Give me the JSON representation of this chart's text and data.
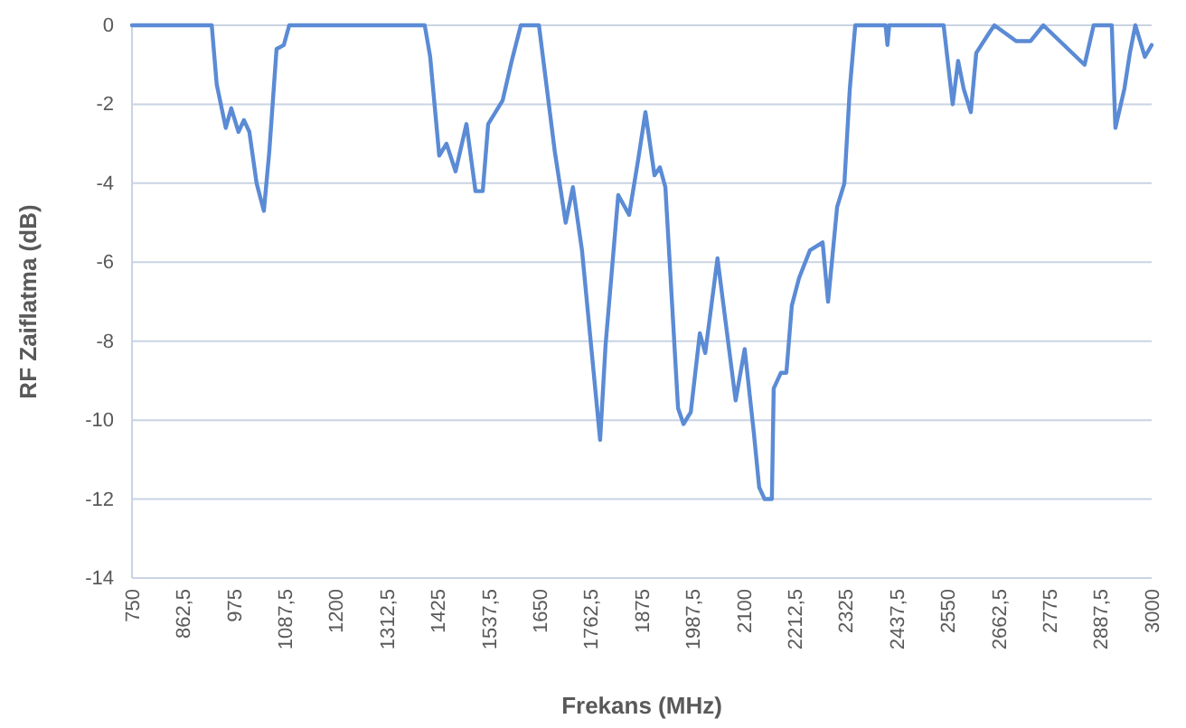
{
  "chart_data": {
    "type": "line",
    "xlabel": "Frekans (MHz)",
    "ylabel": "RF Zaiflatma (dB)",
    "xlim": [
      750,
      3000
    ],
    "ylim": [
      -14,
      0
    ],
    "xticks": [
      750,
      {
        "value": 862.5,
        "label": "862,5"
      },
      975,
      {
        "value": 1087.5,
        "label": "1087,5"
      },
      1200,
      {
        "value": 1312.5,
        "label": "1312,5"
      },
      1425,
      {
        "value": 1537.5,
        "label": "1537,5"
      },
      1650,
      {
        "value": 1762.5,
        "label": "1762,5"
      },
      1875,
      {
        "value": 1987.5,
        "label": "1987,5"
      },
      2100,
      {
        "value": 2212.5,
        "label": "2212,5"
      },
      2325,
      {
        "value": 2437.5,
        "label": "2437,5"
      },
      2550,
      {
        "value": 2662.5,
        "label": "2662,5"
      },
      2775,
      {
        "value": 2887.5,
        "label": "2887,5"
      },
      3000
    ],
    "yticks": [
      -14,
      -12,
      -10,
      -8,
      -6,
      -4,
      -2,
      0
    ],
    "grid": "y",
    "marker": "none",
    "line_style": "solid",
    "series": [
      {
        "color": "#5b8bd5",
        "x": [
          750,
          906,
          926,
          937,
          957,
          969,
          985,
          997,
          1009,
          1025,
          1041,
          1053,
          1069,
          1085,
          1097,
          1396,
          1408,
          1428,
          1444,
          1464,
          1488,
          1508,
          1524,
          1536,
          1568,
          1588,
          1608,
          1648,
          1683,
          1707,
          1723,
          1743,
          1783,
          1795,
          1823,
          1847,
          1867,
          1883,
          1903,
          1915,
          1927,
          1955,
          1967,
          1983,
          2003,
          2015,
          2042,
          2082,
          2102,
          2122,
          2134,
          2146,
          2162,
          2166,
          2182,
          2194,
          2206,
          2222,
          2246,
          2274,
          2286,
          2306,
          2322,
          2334,
          2346,
          2413,
          2417,
          2421,
          2541,
          2561,
          2573,
          2585,
          2601,
          2613,
          2641,
          2653,
          2701,
          2733,
          2761,
          2852,
          2872,
          2912,
          2920,
          2940,
          2952,
          2964,
          2985,
          3000
        ],
        "values": [
          0,
          0,
          0,
          -1.5,
          -2.6,
          -2.1,
          -2.7,
          -2.4,
          -2.7,
          -4,
          -4.7,
          -3.2,
          -0.6,
          -0.5,
          0,
          0,
          -0.8,
          -3.3,
          -3,
          -3.7,
          -2.5,
          -4.2,
          -4.2,
          -2.5,
          -1.9,
          -0.9,
          0,
          0,
          -3.2,
          -5,
          -4.1,
          -5.7,
          -10.5,
          -8.1,
          -4.3,
          -4.8,
          -3.4,
          -2.2,
          -3.8,
          -3.6,
          -4.1,
          -9.7,
          -10.1,
          -9.8,
          -7.8,
          -8.3,
          -5.9,
          -9.5,
          -8.2,
          -10.3,
          -11.7,
          -12,
          -12,
          -9.2,
          -8.8,
          -8.8,
          -7.1,
          -6.4,
          -5.7,
          -5.5,
          -7,
          -4.6,
          -4,
          -1.6,
          0,
          0,
          -0.5,
          0,
          0,
          -2,
          -0.9,
          -1.6,
          -2.2,
          -0.7,
          -0.2,
          0,
          -0.4,
          -0.4,
          0,
          -1,
          0,
          0,
          -2.6,
          -1.6,
          -0.7,
          0,
          -0.8,
          -0.5
        ]
      }
    ]
  }
}
